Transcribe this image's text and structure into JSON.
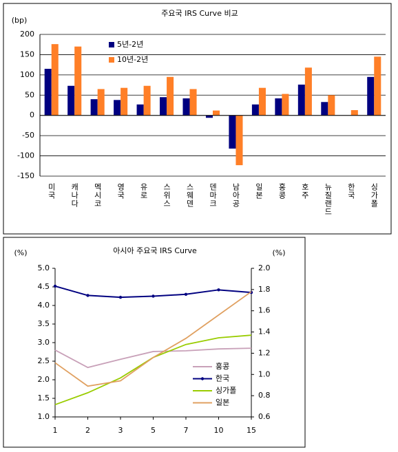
{
  "chart_data": [
    {
      "type": "bar",
      "title": "주요국 IRS Curve 비교",
      "y_label": "(bp)",
      "categories": [
        "미국",
        "캐나다",
        "멕시코",
        "영국",
        "유로",
        "스위스",
        "스웨덴",
        "덴마크",
        "남아공",
        "일본",
        "홍콩",
        "호주",
        "뉴질랜드",
        "한국",
        "싱가폴"
      ],
      "series": [
        {
          "name": "5년-2년",
          "color": "#000080",
          "values": [
            115,
            73,
            40,
            38,
            27,
            45,
            42,
            -6,
            -82,
            27,
            42,
            76,
            33,
            0,
            95
          ]
        },
        {
          "name": "10년-2년",
          "color": "#ff7f27",
          "values": [
            176,
            170,
            65,
            68,
            73,
            95,
            65,
            12,
            -123,
            68,
            53,
            118,
            50,
            13,
            145
          ]
        }
      ],
      "ylim": [
        -150,
        200
      ],
      "yticks": [
        -150,
        -100,
        -50,
        0,
        50,
        100,
        150,
        200
      ],
      "grid": true,
      "legend": "upper left"
    },
    {
      "type": "line",
      "title": "아시아 주요국 IRS Curve",
      "y_label": "(%)",
      "y2_label": "(%)",
      "categories": [
        "1",
        "2",
        "3",
        "5",
        "7",
        "10",
        "15"
      ],
      "series": [
        {
          "name": "홍콩",
          "color": "#c8a0b8",
          "values": [
            2.8,
            2.33,
            2.55,
            2.76,
            2.78,
            2.83,
            2.85
          ]
        },
        {
          "name": "한국",
          "color": "#000080",
          "values": [
            4.52,
            4.27,
            4.22,
            4.25,
            4.3,
            4.42,
            4.35
          ],
          "markers": true
        },
        {
          "name": "싱가폴",
          "color": "#99cc00",
          "values": [
            1.33,
            1.65,
            2.05,
            2.6,
            2.95,
            3.13,
            3.2
          ]
        },
        {
          "name": "일본",
          "color": "#e0a060",
          "values": [
            1.11,
            0.89,
            0.94,
            1.16,
            1.34,
            1.56,
            1.78
          ],
          "axis": "y2"
        }
      ],
      "ylim": [
        1,
        5
      ],
      "yticks": [
        {
          "value": 1,
          "label": "1.0"
        },
        1.5,
        {
          "value": 2,
          "label": "2.0"
        },
        2.5,
        {
          "value": 3,
          "label": "3.0"
        },
        3.5,
        {
          "value": 4,
          "label": "4.0"
        },
        4.5,
        {
          "value": 5,
          "label": "5.0"
        }
      ],
      "y2lim": [
        0.6,
        2
      ],
      "y2ticks": [
        0.6,
        0.8,
        {
          "value": 1,
          "label": "1.0"
        },
        1.2,
        1.4,
        1.6,
        1.8,
        {
          "value": 2,
          "label": "2.0"
        }
      ],
      "grid": false,
      "legend": "lower right"
    }
  ]
}
